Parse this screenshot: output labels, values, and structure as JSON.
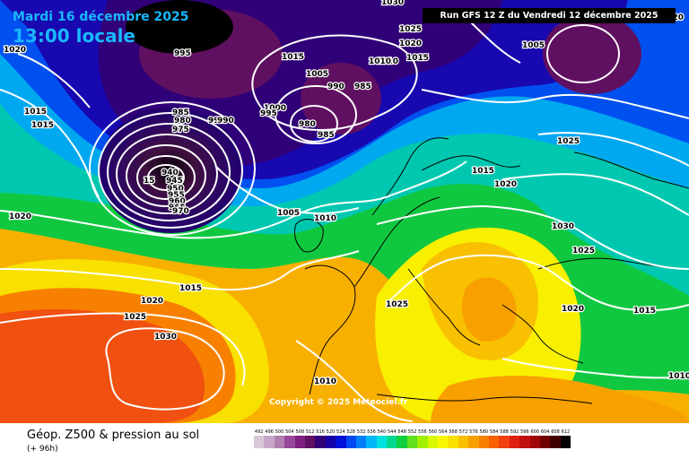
{
  "header": {
    "date": "Mardi 16 décembre 2025",
    "local_time": "13:00 locale",
    "run": "Run GFS 12 Z du Vendredi 12 décembre 2025"
  },
  "copyright": "Copyright © 2025 Meteociel.fr",
  "footer": {
    "title": "Géop. Z500 & pression au sol",
    "subtitle": "(+ 96h)"
  },
  "legend": [
    {
      "label": "492",
      "color": "#d8c8d8"
    },
    {
      "label": "496",
      "color": "#c8a8c8"
    },
    {
      "label": "500",
      "color": "#b080b0"
    },
    {
      "label": "504",
      "color": "#984898"
    },
    {
      "label": "508",
      "color": "#802080"
    },
    {
      "label": "512",
      "color": "#601060"
    },
    {
      "label": "516",
      "color": "#300078"
    },
    {
      "label": "520",
      "color": "#1800a8"
    },
    {
      "label": "524",
      "color": "#0010d8"
    },
    {
      "label": "528",
      "color": "#0048f0"
    },
    {
      "label": "532",
      "color": "#0080f8"
    },
    {
      "label": "536",
      "color": "#00b8f8"
    },
    {
      "label": "540",
      "color": "#00e0e0"
    },
    {
      "label": "544",
      "color": "#00d890"
    },
    {
      "label": "548",
      "color": "#10d040"
    },
    {
      "label": "552",
      "color": "#60e020"
    },
    {
      "label": "556",
      "color": "#a0f000"
    },
    {
      "label": "560",
      "color": "#d8f800"
    },
    {
      "label": "564",
      "color": "#f8f800"
    },
    {
      "label": "568",
      "color": "#f8e000"
    },
    {
      "label": "572",
      "color": "#f8c000"
    },
    {
      "label": "576",
      "color": "#f8a000"
    },
    {
      "label": "580",
      "color": "#f88000"
    },
    {
      "label": "584",
      "color": "#f86000"
    },
    {
      "label": "588",
      "color": "#f04010"
    },
    {
      "label": "592",
      "color": "#e02010"
    },
    {
      "label": "596",
      "color": "#c01010"
    },
    {
      "label": "600",
      "color": "#a00808"
    },
    {
      "label": "604",
      "color": "#700000"
    },
    {
      "label": "608",
      "color": "#400000"
    },
    {
      "label": "612",
      "color": "#000000"
    }
  ],
  "isobar_labels": [
    "1030",
    "1025",
    "1020",
    "1015",
    "1010",
    "1015",
    "1005",
    "1020",
    "1015",
    "1005",
    "995",
    "990",
    "985",
    "1000",
    "995",
    "990",
    "985",
    "980",
    "975",
    "985",
    "980",
    "990",
    "1015",
    "1015",
    "1020",
    "940",
    "945",
    "950",
    "955",
    "960",
    "965",
    "970",
    "15",
    "1010",
    "1005",
    "1015",
    "1020",
    "1030",
    "1025",
    "1025",
    "1020",
    "1015",
    "1020",
    "1025",
    "1030",
    "1015",
    "1010",
    "1010",
    "1005",
    "1020",
    "1025",
    "1010"
  ]
}
